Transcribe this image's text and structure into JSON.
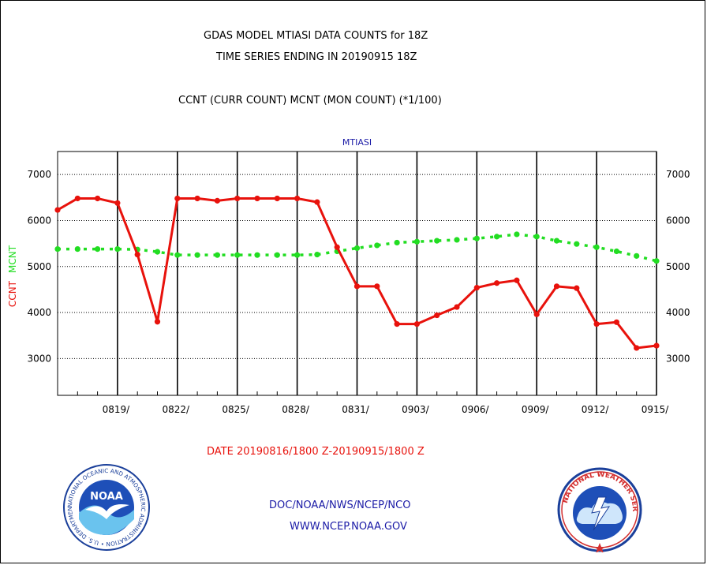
{
  "header": {
    "title_line1": "GDAS MODEL MTIASI DATA COUNTS for 18Z",
    "title_line2": "TIME SERIES ENDING IN 20190915 18Z",
    "subtitle": "CCNT (CURR COUNT) MCNT (MON COUNT) (*1/100)"
  },
  "chart_data": {
    "type": "line",
    "title": "MTIASI",
    "ylabel_series1": "CCNT",
    "ylabel_series2": "MCNT",
    "ylim": [
      2200,
      7500
    ],
    "yticks": [
      3000,
      4000,
      5000,
      6000,
      7000
    ],
    "ytick_labels": [
      "3000",
      "4000",
      "5000",
      "6000",
      "7000"
    ],
    "xlim": [
      0,
      30
    ],
    "xtick_positions": [
      3,
      6,
      9,
      12,
      15,
      18,
      21,
      24,
      27,
      30
    ],
    "xtick_labels": [
      "0819/",
      "0822/",
      "0825/",
      "0828/",
      "0831/",
      "0903/",
      "0906/",
      "0909/",
      "0912/",
      "0915/"
    ],
    "grid": true,
    "x": [
      0,
      1,
      2,
      3,
      4,
      5,
      6,
      7,
      8,
      9,
      10,
      11,
      12,
      13,
      14,
      15,
      16,
      17,
      18,
      19,
      20,
      21,
      22,
      23,
      24,
      25,
      26,
      27,
      28,
      29,
      30
    ],
    "series": [
      {
        "name": "CCNT",
        "color": "#e8120c",
        "style": "solid",
        "values": [
          6230,
          6480,
          6480,
          6380,
          5260,
          3800,
          6480,
          6480,
          6430,
          6480,
          6480,
          6480,
          6480,
          6400,
          5420,
          4570,
          4570,
          3750,
          3750,
          3940,
          4120,
          4540,
          4640,
          4700,
          3960,
          4570,
          4530,
          3750,
          3790,
          3230,
          3280
        ]
      },
      {
        "name": "MCNT",
        "color": "#22dd22",
        "style": "dashed",
        "values": [
          5380,
          5380,
          5380,
          5380,
          5370,
          5320,
          5250,
          5250,
          5250,
          5250,
          5250,
          5250,
          5250,
          5260,
          5330,
          5400,
          5460,
          5520,
          5540,
          5560,
          5580,
          5610,
          5650,
          5700,
          5650,
          5560,
          5490,
          5420,
          5330,
          5230,
          5120
        ]
      }
    ]
  },
  "date_range": "DATE 20190816/1800 Z-20190915/1800 Z",
  "footer": {
    "line1": "DOC/NOAA/NWS/NCEP/NCO",
    "line2": "WWW.NCEP.NOAA.GOV"
  },
  "logos": {
    "left": {
      "center_text": "NOAA",
      "ring_text": "NATIONAL OCEANIC AND ATMOSPHERIC ADMINISTRATION • U.S. DEPARTMENT OF COMMERCE •"
    },
    "right": {
      "ring_text": "NATIONAL WEATHER SERVICE"
    }
  }
}
